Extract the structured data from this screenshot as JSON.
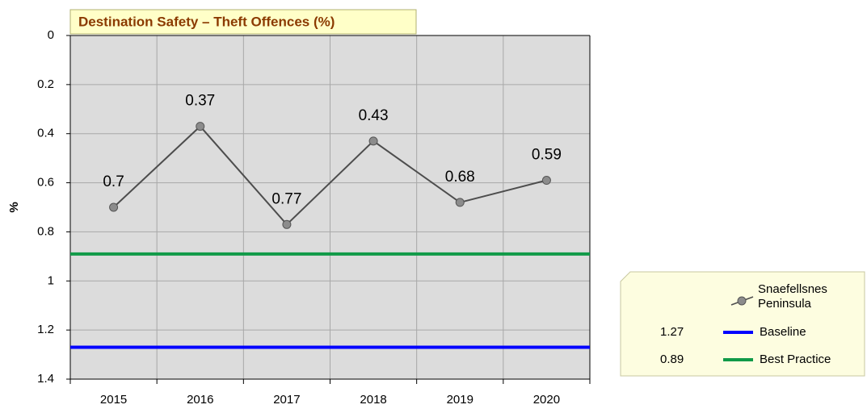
{
  "chart_data": {
    "type": "line",
    "title": "Destination Safety – Theft Offences (%)",
    "y_label": "%",
    "categories": [
      "2015",
      "2016",
      "2017",
      "2018",
      "2019",
      "2020"
    ],
    "series": [
      {
        "name": "Snaefellsnes Peninsula",
        "color": "#4d4d4d",
        "marker_color": "#8c8c8c",
        "values": [
          0.7,
          0.37,
          0.77,
          0.43,
          0.68,
          0.59
        ]
      }
    ],
    "reference_lines": [
      {
        "name": "Baseline",
        "value": 1.27,
        "color": "#0000ff"
      },
      {
        "name": "Best Practice",
        "value": 0.89,
        "color": "#109a48"
      }
    ],
    "ylim": [
      0,
      1.4
    ],
    "y_inverted": true,
    "yticks": [
      0,
      0.2,
      0.4,
      0.6,
      0.8,
      1,
      1.2,
      1.4
    ],
    "grid": true,
    "legend_position": "bottom-right"
  }
}
